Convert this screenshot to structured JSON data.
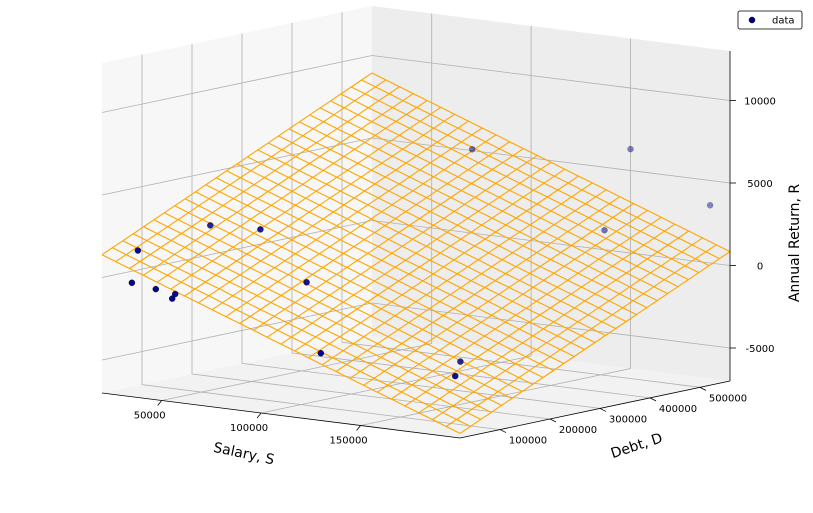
{
  "chart_data": {
    "type": "scatter",
    "view": "3d",
    "xlabel": "Salary, S",
    "ylabel": "Debt, D",
    "zlabel": "Annual Return, R",
    "x_ticks": [
      50000,
      100000,
      150000
    ],
    "x_tick_labels": [
      "50000",
      "100000",
      "150000"
    ],
    "y_ticks": [
      100000,
      200000,
      300000,
      400000,
      500000
    ],
    "y_tick_labels": [
      "100000",
      "200000",
      "300000",
      "400000",
      "500000"
    ],
    "z_ticks": [
      -5000,
      0,
      5000,
      10000
    ],
    "z_tick_labels": [
      "-5000",
      "0",
      "5000",
      "10000"
    ],
    "xlim": [
      20000,
      200000
    ],
    "ylim": [
      20000,
      560000
    ],
    "zlim": [
      -7000,
      13000
    ],
    "grid": true,
    "legend": {
      "position": "top-right",
      "entries": [
        "data"
      ]
    },
    "series": [
      {
        "name": "data",
        "kind": "scatter",
        "color": "#00008b",
        "points": [
          {
            "x": 28000,
            "y": 60000,
            "z": 1500
          },
          {
            "x": 30000,
            "y": 40000,
            "z": -300
          },
          {
            "x": 42000,
            "y": 40000,
            "z": -500
          },
          {
            "x": 48000,
            "y": 55000,
            "z": -800
          },
          {
            "x": 49000,
            "y": 45000,
            "z": -1000
          },
          {
            "x": 38000,
            "y": 165000,
            "z": 2500
          },
          {
            "x": 72000,
            "y": 130000,
            "z": 3000
          },
          {
            "x": 104000,
            "y": 95000,
            "z": 500
          },
          {
            "x": 128000,
            "y": 28000,
            "z": -3000
          },
          {
            "x": 160000,
            "y": 180000,
            "z": -4000
          },
          {
            "x": 157000,
            "y": 480000,
            "z": 2000
          },
          {
            "x": 93000,
            "y": 470000,
            "z": 6000
          },
          {
            "x": 155000,
            "y": 540000,
            "z": 6500
          },
          {
            "x": 180000,
            "y": 90000,
            "z": -4000
          },
          {
            "x": 190000,
            "y": 560000,
            "z": 3500
          }
        ]
      },
      {
        "name": "",
        "kind": "surface",
        "color": "#ffa500",
        "x_range": [
          20000,
          200000
        ],
        "y_range": [
          20000,
          560000
        ],
        "grid_lines": 26,
        "plane": {
          "intercept": 2000,
          "slope_x": -0.045,
          "slope_y": 0.014
        }
      }
    ]
  }
}
